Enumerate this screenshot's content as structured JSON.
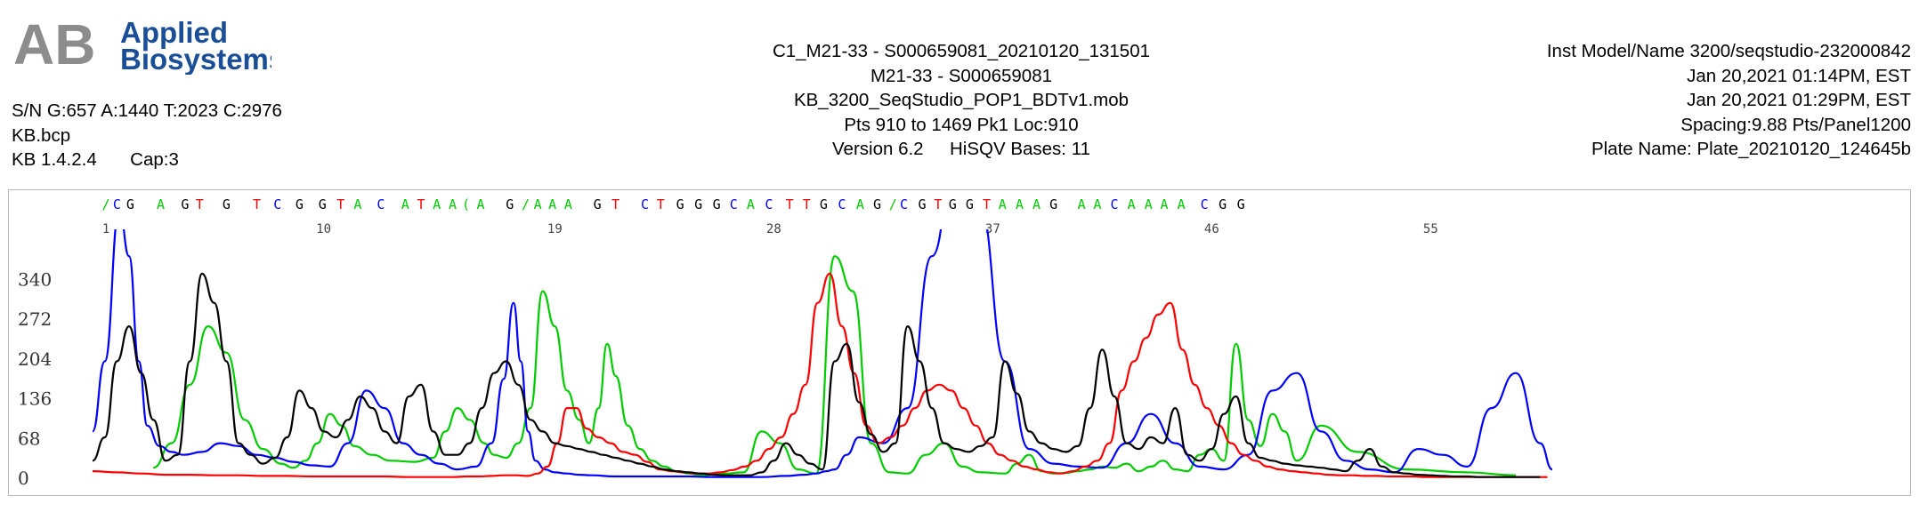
{
  "logo": {
    "mark": "AB",
    "line1": "Applied",
    "line2": "Biosystems",
    "color": "#1a4e96",
    "mark_color": "#8c8c8c"
  },
  "meta_left": {
    "sn": "S/N G:657 A:1440 T:2023 C:2976",
    "basecaller": "KB.bcp",
    "version": "KB 1.4.2.4",
    "cap": "Cap:3"
  },
  "meta_center": {
    "sample_file": "C1_M21-33 - S000659081_20210120_131501",
    "sample_name": "M21-33 - S000659081",
    "mobility": "KB_3200_SeqStudio_POP1_BDTv1.mob",
    "points": "Pts 910 to 1469 Pk1 Loc:910",
    "software_version": "Version 6.2",
    "hisqv": "HiSQV Bases: 11"
  },
  "meta_right": {
    "instrument": "Inst Model/Name 3200/seqstudio-232000842",
    "run_start": "Jan 20,2021 01:14PM, EST",
    "run_end": "Jan 20,2021 01:29PM, EST",
    "spacing": "Spacing:9.88  Pts/Panel1200",
    "plate": "Plate Name: Plate_20210120_124645b"
  },
  "chart_data": {
    "type": "line",
    "title": "",
    "xlabel": "",
    "ylabel": "",
    "ylim": [
      0,
      400
    ],
    "xlim": [
      910,
      2110
    ],
    "yticks": [
      0,
      68,
      136,
      204,
      272,
      340
    ],
    "grid": false,
    "base_colors": {
      "A": "#00cc00",
      "C": "#0000ff",
      "G": "#000000",
      "T": "#ff0000"
    },
    "base_calls": [
      {
        "base": "/",
        "x": 921
      },
      {
        "base": "C",
        "x": 930
      },
      {
        "base": "G",
        "x": 941
      },
      {
        "base": "A",
        "x": 966
      },
      {
        "base": "G",
        "x": 986
      },
      {
        "base": "T",
        "x": 998
      },
      {
        "base": "G",
        "x": 1020
      },
      {
        "base": "T",
        "x": 1045
      },
      {
        "base": "C",
        "x": 1062
      },
      {
        "base": "G",
        "x": 1080
      },
      {
        "base": "G",
        "x": 1099
      },
      {
        "base": "T",
        "x": 1114
      },
      {
        "base": "A",
        "x": 1128
      },
      {
        "base": "C",
        "x": 1147
      },
      {
        "base": "A",
        "x": 1167
      },
      {
        "base": "T",
        "x": 1180
      },
      {
        "base": "A",
        "x": 1193
      },
      {
        "base": "A",
        "x": 1206
      },
      {
        "base": "(",
        "x": 1217
      },
      {
        "base": "A",
        "x": 1229
      },
      {
        "base": "G",
        "x": 1253
      },
      {
        "base": "/",
        "x": 1266
      },
      {
        "base": "A",
        "x": 1276
      },
      {
        "base": "A",
        "x": 1288
      },
      {
        "base": "A",
        "x": 1301
      },
      {
        "base": "G",
        "x": 1325
      },
      {
        "base": "T",
        "x": 1340
      },
      {
        "base": "C",
        "x": 1364
      },
      {
        "base": "T",
        "x": 1377
      },
      {
        "base": "G",
        "x": 1393
      },
      {
        "base": "G",
        "x": 1408
      },
      {
        "base": "G",
        "x": 1423
      },
      {
        "base": "C",
        "x": 1437
      },
      {
        "base": "A",
        "x": 1451
      },
      {
        "base": "C",
        "x": 1466
      },
      {
        "base": "T",
        "x": 1483
      },
      {
        "base": "T",
        "x": 1497
      },
      {
        "base": "G",
        "x": 1511
      },
      {
        "base": "C",
        "x": 1526
      },
      {
        "base": "A",
        "x": 1541
      },
      {
        "base": "G",
        "x": 1555
      },
      {
        "base": "/",
        "x": 1568
      },
      {
        "base": "C",
        "x": 1577
      },
      {
        "base": "G",
        "x": 1592
      },
      {
        "base": "T",
        "x": 1605
      },
      {
        "base": "G",
        "x": 1617
      },
      {
        "base": "G",
        "x": 1631
      },
      {
        "base": "T",
        "x": 1645
      },
      {
        "base": "A",
        "x": 1658
      },
      {
        "base": "A",
        "x": 1672
      },
      {
        "base": "A",
        "x": 1686
      },
      {
        "base": "G",
        "x": 1700
      },
      {
        "base": "A",
        "x": 1723
      },
      {
        "base": "A",
        "x": 1736
      },
      {
        "base": "C",
        "x": 1750
      },
      {
        "base": "A",
        "x": 1764
      },
      {
        "base": "A",
        "x": 1778
      },
      {
        "base": "A",
        "x": 1791
      },
      {
        "base": "A",
        "x": 1805
      },
      {
        "base": "C",
        "x": 1824
      },
      {
        "base": "G",
        "x": 1839
      },
      {
        "base": "G",
        "x": 1854
      }
    ],
    "position_labels": [
      {
        "label": "1",
        "x": 921
      },
      {
        "label": "10",
        "x": 1100
      },
      {
        "label": "19",
        "x": 1290
      },
      {
        "label": "28",
        "x": 1470
      },
      {
        "label": "37",
        "x": 1650
      },
      {
        "label": "46",
        "x": 1830
      },
      {
        "label": "55",
        "x": 2010
      }
    ],
    "series": [
      {
        "name": "A",
        "color": "#00cc00",
        "x": [
          960,
          975,
          990,
          1005,
          1020,
          1035,
          1050,
          1065,
          1075,
          1085,
          1095,
          1105,
          1115,
          1125,
          1140,
          1155,
          1175,
          1190,
          1200,
          1210,
          1220,
          1232,
          1240,
          1250,
          1260,
          1270,
          1280,
          1290,
          1300,
          1310,
          1318,
          1326,
          1333,
          1340,
          1350,
          1360,
          1370,
          1380,
          1390,
          1400,
          1410,
          1430,
          1445,
          1460,
          1475,
          1490,
          1505,
          1520,
          1535,
          1550,
          1565,
          1580,
          1595,
          1610,
          1625,
          1640,
          1660,
          1670,
          1680,
          1690,
          1700,
          1710,
          1720,
          1730,
          1740,
          1750,
          1760,
          1770,
          1780,
          1790,
          1800,
          1810,
          1820,
          1830,
          1840,
          1850,
          1860,
          1870,
          1880,
          1890,
          1900,
          1920,
          1950,
          1990,
          2040,
          2080
        ],
        "y": [
          18,
          60,
          160,
          260,
          215,
          100,
          50,
          25,
          18,
          30,
          60,
          110,
          90,
          55,
          40,
          30,
          28,
          35,
          80,
          120,
          100,
          60,
          40,
          35,
          60,
          120,
          320,
          260,
          150,
          100,
          60,
          120,
          230,
          175,
          90,
          50,
          30,
          20,
          12,
          8,
          5,
          8,
          10,
          80,
          60,
          15,
          8,
          380,
          320,
          60,
          10,
          8,
          40,
          60,
          20,
          10,
          8,
          25,
          40,
          12,
          8,
          9,
          12,
          15,
          20,
          18,
          25,
          12,
          20,
          30,
          15,
          12,
          40,
          50,
          30,
          230,
          100,
          55,
          110,
          80,
          30,
          90,
          45,
          15,
          10,
          5
        ]
      },
      {
        "name": "C",
        "color": "#0000ff",
        "x": [
          910,
          920,
          932,
          940,
          948,
          955,
          965,
          975,
          985,
          1000,
          1015,
          1030,
          1045,
          1060,
          1075,
          1090,
          1105,
          1120,
          1135,
          1150,
          1165,
          1180,
          1195,
          1210,
          1225,
          1238,
          1248,
          1256,
          1262,
          1268,
          1274,
          1282,
          1290,
          1300,
          1310,
          1320,
          1340,
          1360,
          1380,
          1400,
          1420,
          1440,
          1460,
          1480,
          1495,
          1505,
          1513,
          1520,
          1530,
          1540,
          1560,
          1580,
          1600,
          1620,
          1640,
          1660,
          1680,
          1700,
          1720,
          1740,
          1760,
          1780,
          1800,
          1820,
          1840,
          1860,
          1880,
          1900,
          1920,
          1940,
          1960,
          1980,
          2000,
          2020,
          2040,
          2060,
          2080,
          2100,
          2110
        ],
        "y": [
          80,
          200,
          460,
          380,
          200,
          90,
          55,
          45,
          40,
          45,
          60,
          55,
          40,
          35,
          28,
          22,
          20,
          60,
          150,
          120,
          60,
          40,
          25,
          15,
          20,
          60,
          170,
          300,
          200,
          80,
          30,
          15,
          10,
          8,
          6,
          5,
          3,
          3,
          3,
          3,
          2,
          2,
          2,
          4,
          6,
          8,
          12,
          15,
          40,
          70,
          60,
          120,
          380,
          560,
          460,
          200,
          50,
          25,
          20,
          18,
          60,
          110,
          60,
          20,
          15,
          40,
          150,
          180,
          80,
          30,
          15,
          10,
          50,
          40,
          20,
          120,
          180,
          60,
          15
        ]
      },
      {
        "name": "T",
        "color": "#ff0000",
        "x": [
          910,
          930,
          950,
          970,
          990,
          1010,
          1030,
          1050,
          1070,
          1090,
          1110,
          1130,
          1150,
          1170,
          1190,
          1205,
          1218,
          1228,
          1238,
          1248,
          1258,
          1268,
          1276,
          1284,
          1292,
          1300,
          1308,
          1316,
          1326,
          1336,
          1346,
          1356,
          1366,
          1376,
          1386,
          1396,
          1406,
          1416,
          1426,
          1436,
          1446,
          1456,
          1466,
          1476,
          1486,
          1496,
          1506,
          1516,
          1526,
          1536,
          1546,
          1556,
          1566,
          1576,
          1586,
          1596,
          1606,
          1616,
          1626,
          1636,
          1646,
          1656,
          1666,
          1676,
          1686,
          1696,
          1706,
          1716,
          1726,
          1736,
          1746,
          1756,
          1766,
          1776,
          1786,
          1796,
          1806,
          1816,
          1826,
          1836,
          1846,
          1856,
          1866,
          1876,
          1886,
          1896,
          1906,
          1916,
          1926,
          1936,
          1946,
          1956,
          1966,
          1976,
          1986,
          1996,
          2006,
          2016,
          2026,
          2036,
          2046,
          2056,
          2066,
          2076,
          2086,
          2096,
          2106
        ],
        "y": [
          12,
          10,
          8,
          6,
          6,
          5,
          5,
          4,
          4,
          3,
          3,
          3,
          3,
          2,
          2,
          2,
          3,
          3,
          4,
          5,
          5,
          4,
          8,
          20,
          60,
          120,
          120,
          85,
          70,
          60,
          45,
          40,
          28,
          15,
          12,
          10,
          8,
          8,
          10,
          14,
          20,
          30,
          50,
          70,
          110,
          160,
          300,
          350,
          260,
          180,
          90,
          60,
          70,
          90,
          120,
          150,
          160,
          150,
          120,
          90,
          60,
          40,
          30,
          20,
          15,
          10,
          8,
          12,
          20,
          30,
          60,
          150,
          200,
          240,
          280,
          300,
          220,
          160,
          120,
          90,
          60,
          40,
          30,
          20,
          15,
          12,
          10,
          8,
          6,
          5,
          5,
          4,
          4,
          3,
          3,
          3,
          2,
          2,
          2,
          2,
          2,
          2,
          2,
          2,
          2,
          2,
          2
        ]
      },
      {
        "name": "G",
        "color": "#000000",
        "x": [
          910,
          920,
          930,
          940,
          950,
          960,
          970,
          980,
          990,
          1000,
          1010,
          1020,
          1030,
          1040,
          1050,
          1060,
          1070,
          1080,
          1090,
          1100,
          1110,
          1120,
          1130,
          1140,
          1150,
          1160,
          1170,
          1180,
          1190,
          1200,
          1210,
          1220,
          1230,
          1240,
          1250,
          1260,
          1270,
          1280,
          1290,
          1300,
          1310,
          1320,
          1330,
          1340,
          1350,
          1360,
          1370,
          1380,
          1390,
          1400,
          1410,
          1420,
          1430,
          1440,
          1450,
          1460,
          1470,
          1480,
          1490,
          1500,
          1510,
          1520,
          1530,
          1540,
          1550,
          1560,
          1570,
          1580,
          1590,
          1600,
          1610,
          1620,
          1630,
          1640,
          1650,
          1660,
          1670,
          1680,
          1690,
          1700,
          1710,
          1720,
          1730,
          1740,
          1750,
          1760,
          1770,
          1780,
          1790,
          1800,
          1810,
          1820,
          1830,
          1840,
          1850,
          1860,
          1870,
          1880,
          1890,
          1900,
          1910,
          1920,
          1930,
          1940,
          1950,
          1960,
          1970,
          1980,
          1990,
          2000,
          2010,
          2020,
          2030,
          2040,
          2050,
          2060,
          2070,
          2080,
          2090,
          2100
        ],
        "y": [
          30,
          70,
          200,
          260,
          180,
          100,
          30,
          40,
          200,
          350,
          300,
          200,
          60,
          40,
          25,
          35,
          70,
          150,
          120,
          80,
          70,
          100,
          140,
          120,
          80,
          60,
          140,
          160,
          80,
          40,
          40,
          60,
          120,
          180,
          200,
          160,
          100,
          80,
          60,
          55,
          50,
          45,
          40,
          35,
          30,
          25,
          20,
          15,
          12,
          10,
          8,
          6,
          5,
          5,
          5,
          10,
          30,
          60,
          40,
          25,
          15,
          200,
          230,
          130,
          75,
          45,
          60,
          260,
          200,
          120,
          60,
          50,
          45,
          55,
          70,
          200,
          145,
          80,
          60,
          50,
          45,
          55,
          120,
          220,
          140,
          60,
          50,
          70,
          60,
          120,
          40,
          30,
          50,
          110,
          140,
          60,
          35,
          30,
          25,
          22,
          20,
          18,
          15,
          12,
          30,
          50,
          20,
          10,
          8,
          6,
          5,
          4,
          3,
          3,
          2,
          2,
          2,
          2,
          2,
          2
        ]
      }
    ]
  }
}
